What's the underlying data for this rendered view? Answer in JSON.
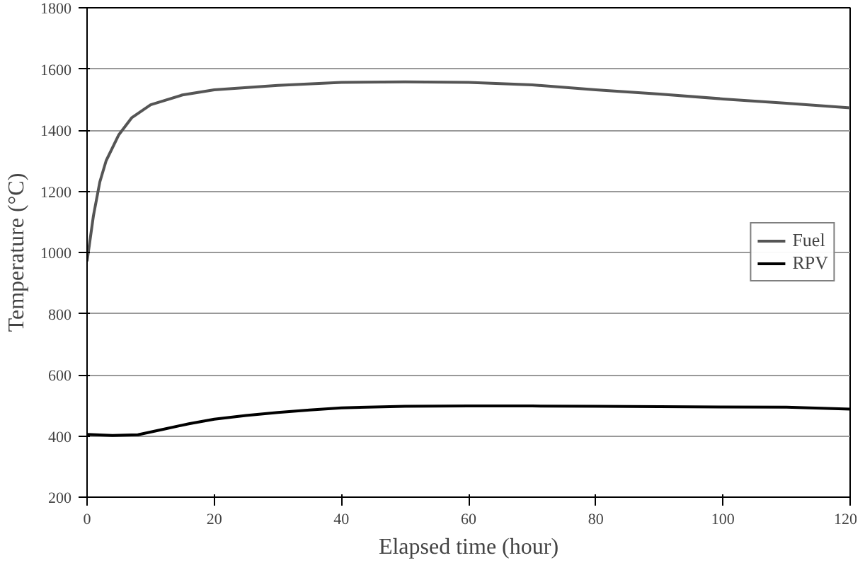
{
  "chart_data": {
    "type": "line",
    "xlabel": "Elapsed time (hour)",
    "ylabel": "Temperature (°C)",
    "xlim": [
      0,
      120
    ],
    "xticks": [
      0,
      20,
      40,
      60,
      80,
      100,
      120
    ],
    "ylim": [
      200,
      1800
    ],
    "yticks": [
      200,
      400,
      600,
      800,
      1000,
      1200,
      1400,
      1600,
      1800
    ],
    "grid": "y",
    "legend": "right",
    "series": [
      {
        "name": "Fuel",
        "color": "#555555",
        "x": [
          0,
          1,
          2,
          3,
          5,
          7,
          10,
          15,
          20,
          30,
          40,
          50,
          60,
          70,
          80,
          90,
          100,
          110,
          120
        ],
        "values": [
          971,
          1120,
          1230,
          1300,
          1385,
          1440,
          1483,
          1515,
          1532,
          1546,
          1556,
          1558,
          1556,
          1548,
          1532,
          1518,
          1502,
          1488,
          1473
        ]
      },
      {
        "name": "RPV",
        "color": "#000000",
        "x": [
          0,
          4,
          8,
          12,
          16,
          20,
          25,
          30,
          35,
          40,
          50,
          60,
          70,
          80,
          90,
          100,
          110,
          120
        ],
        "values": [
          405,
          402,
          404,
          422,
          440,
          455,
          467,
          477,
          485,
          492,
          497,
          498,
          498,
          497,
          496,
          495,
          494,
          488
        ]
      }
    ]
  }
}
